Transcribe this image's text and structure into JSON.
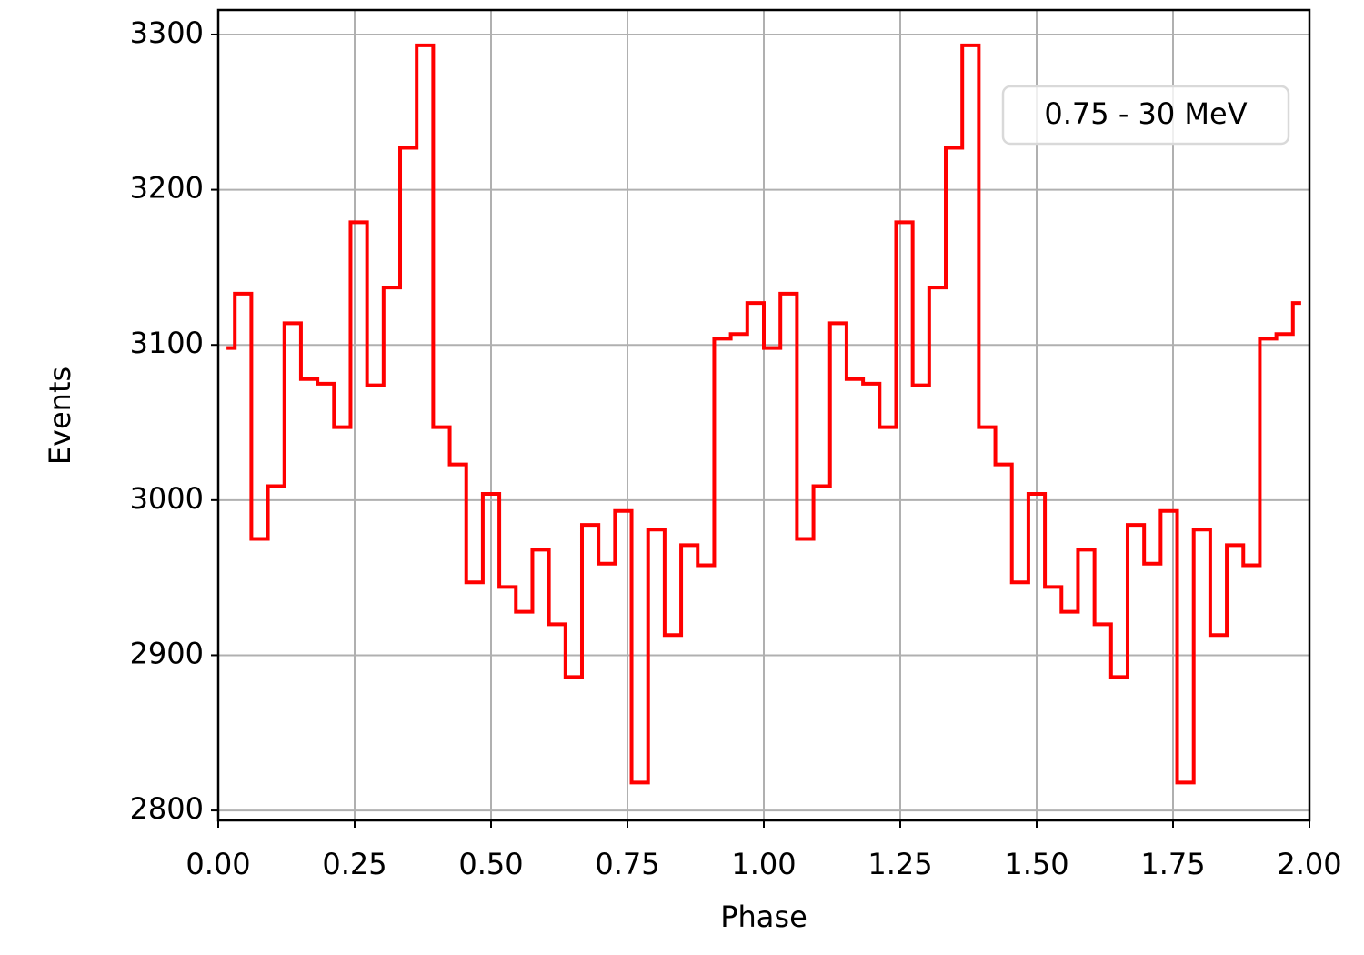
{
  "chart_data": {
    "type": "step",
    "x_label": "Phase",
    "y_label": "Events",
    "annotation": "0.75 - 30 MeV",
    "color": "#ff0000",
    "grid": true,
    "x": [
      0.0152,
      0.0455,
      0.0758,
      0.1061,
      0.1364,
      0.1667,
      0.197,
      0.2273,
      0.2576,
      0.2879,
      0.3182,
      0.3485,
      0.3788,
      0.4091,
      0.4394,
      0.4697,
      0.5,
      0.5303,
      0.5606,
      0.5909,
      0.6212,
      0.6515,
      0.6818,
      0.7121,
      0.7424,
      0.7727,
      0.803,
      0.8333,
      0.8636,
      0.8939,
      0.9242,
      0.9545,
      0.9848,
      1.0152,
      1.0455,
      1.0758,
      1.1061,
      1.1364,
      1.1667,
      1.197,
      1.2273,
      1.2576,
      1.2879,
      1.3182,
      1.3485,
      1.3788,
      1.4091,
      1.4394,
      1.4697,
      1.5,
      1.5303,
      1.5606,
      1.5909,
      1.6212,
      1.6515,
      1.6818,
      1.7121,
      1.7424,
      1.7727,
      1.803,
      1.8333,
      1.8636,
      1.8939,
      1.9242,
      1.9545,
      1.9848
    ],
    "values": [
      3098,
      3133,
      2975,
      3009,
      3114,
      3078,
      3075,
      3047,
      3179,
      3074,
      3137,
      3227,
      3293,
      3047,
      3023,
      2947,
      3004,
      2944,
      2928,
      2968,
      2920,
      2886,
      2984,
      2959,
      2993,
      2818,
      2981,
      2913,
      2971,
      2958,
      3104,
      3107,
      3127,
      3098,
      3133,
      2975,
      3009,
      3114,
      3078,
      3075,
      3047,
      3179,
      3074,
      3137,
      3227,
      3293,
      3047,
      3023,
      2947,
      3004,
      2944,
      2928,
      2968,
      2920,
      2886,
      2984,
      2959,
      2993,
      2818,
      2981,
      2913,
      2971,
      2958,
      3104,
      3107,
      3127
    ],
    "xlim": [
      0,
      2
    ],
    "ylim": [
      2793.6,
      3315.8
    ],
    "xticks": [
      {
        "value": 0,
        "label": "0.00"
      },
      {
        "value": 0.25,
        "label": "0.25"
      },
      {
        "value": 0.5,
        "label": "0.50"
      },
      {
        "value": 0.75,
        "label": "0.75"
      },
      {
        "value": 1,
        "label": "1.00"
      },
      {
        "value": 1.25,
        "label": "1.25"
      },
      {
        "value": 1.5,
        "label": "1.50"
      },
      {
        "value": 1.75,
        "label": "1.75"
      },
      {
        "value": 2,
        "label": "2.00"
      }
    ],
    "yticks": [
      2800,
      2900,
      3000,
      3100,
      3200,
      3300
    ]
  }
}
